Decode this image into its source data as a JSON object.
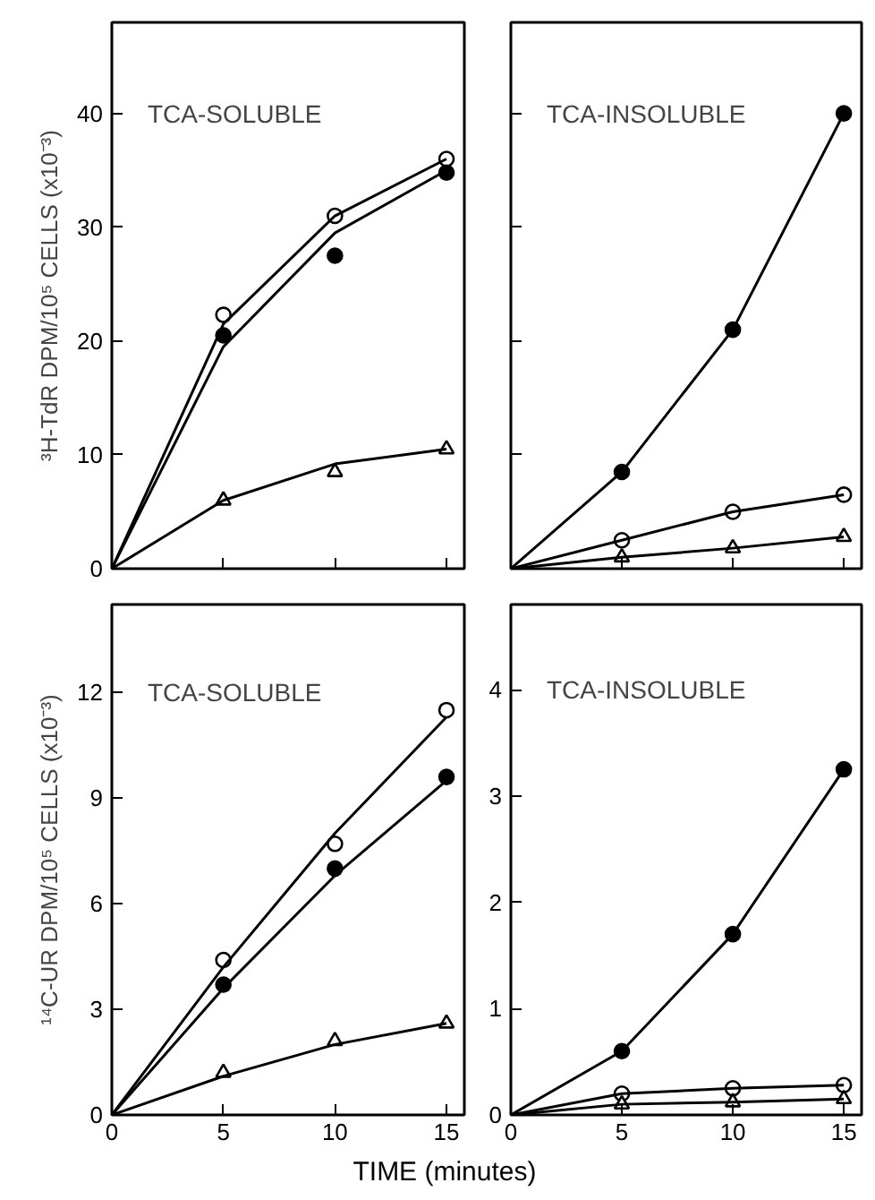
{
  "chart_data": [
    {
      "type": "scatter",
      "title": "TCA-SOLUBLE",
      "ylabel": "³H-TdR DPM/10⁵ CELLS (x10⁻³)",
      "xlim": [
        0,
        15.8
      ],
      "ylim": [
        0,
        48
      ],
      "xticks": [
        0,
        5,
        10,
        15
      ],
      "yticks": [
        0,
        10,
        20,
        30,
        40
      ],
      "tick_labels": "y",
      "series": [
        {
          "color": "#ffffff",
          "marker": "circle",
          "x": [
            5,
            10,
            15
          ],
          "values": [
            22.3,
            31,
            36
          ]
        },
        {
          "color": "#000000",
          "marker": "circle",
          "x": [
            5,
            10,
            15
          ],
          "values": [
            20.5,
            27.5,
            34.8
          ]
        },
        {
          "color": "#ffffff",
          "marker": "triangle",
          "x": [
            5,
            10,
            15
          ],
          "values": [
            6,
            8.5,
            10.5
          ]
        },
        {
          "type": "line",
          "color": "#000000",
          "x": [
            0,
            5,
            10,
            15
          ],
          "values": [
            0,
            21.5,
            31,
            36
          ]
        },
        {
          "type": "line",
          "color": "#000000",
          "x": [
            0,
            5,
            10,
            15
          ],
          "values": [
            0,
            19.5,
            29.5,
            35
          ]
        },
        {
          "type": "line",
          "color": "#000000",
          "x": [
            0,
            5,
            10,
            15
          ],
          "values": [
            0,
            6,
            9.2,
            10.5
          ]
        }
      ]
    },
    {
      "type": "scatter",
      "title": "TCA-INSOLUBLE",
      "xlim": [
        0,
        15.8
      ],
      "ylim": [
        0,
        48
      ],
      "xticks": [
        0,
        5,
        10,
        15
      ],
      "yticks": [
        0,
        10,
        20,
        30,
        40
      ],
      "tick_labels": false,
      "series": [
        {
          "color": "#000000",
          "marker": "circle",
          "x": [
            5,
            10,
            15
          ],
          "values": [
            8.5,
            21,
            40
          ]
        },
        {
          "color": "#ffffff",
          "marker": "circle",
          "x": [
            5,
            10,
            15
          ],
          "values": [
            2.5,
            5,
            6.5
          ]
        },
        {
          "color": "#ffffff",
          "marker": "triangle",
          "x": [
            5,
            10,
            15
          ],
          "values": [
            1,
            1.8,
            2.8
          ]
        },
        {
          "type": "line",
          "color": "#000000",
          "x": [
            0,
            5,
            10,
            15
          ],
          "values": [
            0,
            8.5,
            21,
            40
          ]
        },
        {
          "type": "line",
          "color": "#000000",
          "x": [
            0,
            5,
            10,
            15
          ],
          "values": [
            0,
            2.5,
            5,
            6.5
          ]
        },
        {
          "type": "line",
          "color": "#000000",
          "x": [
            0,
            5,
            10,
            15
          ],
          "values": [
            0,
            1,
            1.8,
            2.8
          ]
        }
      ]
    },
    {
      "type": "scatter",
      "title": "TCA-SOLUBLE",
      "ylabel": "¹⁴C-UR DPM/10⁵ CELLS (x10⁻³)",
      "xlabel": "TIME (minutes)",
      "xlim": [
        0,
        15.8
      ],
      "ylim": [
        0,
        14.5
      ],
      "xticks": [
        0,
        5,
        10,
        15
      ],
      "yticks": [
        0,
        3,
        6,
        9,
        12
      ],
      "series": [
        {
          "color": "#ffffff",
          "marker": "circle",
          "x": [
            5,
            10,
            15
          ],
          "values": [
            4.4,
            7.7,
            11.5
          ]
        },
        {
          "color": "#000000",
          "marker": "circle",
          "x": [
            5,
            10,
            15
          ],
          "values": [
            3.7,
            7.0,
            9.6
          ]
        },
        {
          "color": "#ffffff",
          "marker": "triangle",
          "x": [
            5,
            10,
            15
          ],
          "values": [
            1.2,
            2.1,
            2.6
          ]
        },
        {
          "type": "line",
          "color": "#000000",
          "x": [
            0,
            5,
            10,
            15
          ],
          "values": [
            0,
            4.2,
            8.0,
            11.3
          ]
        },
        {
          "type": "line",
          "color": "#000000",
          "x": [
            0,
            5,
            10,
            15
          ],
          "values": [
            0,
            3.6,
            6.8,
            9.5
          ]
        },
        {
          "type": "line",
          "color": "#000000",
          "x": [
            0,
            5,
            10,
            15
          ],
          "values": [
            0,
            1.1,
            2.0,
            2.6
          ]
        }
      ]
    },
    {
      "type": "scatter",
      "title": "TCA-INSOLUBLE",
      "xlim": [
        0,
        15.8
      ],
      "ylim": [
        0,
        4.8
      ],
      "xticks": [
        0,
        5,
        10,
        15
      ],
      "yticks": [
        0,
        1,
        2,
        3,
        4
      ],
      "series": [
        {
          "color": "#000000",
          "marker": "circle",
          "x": [
            5,
            10,
            15
          ],
          "values": [
            0.6,
            1.7,
            3.25
          ]
        },
        {
          "color": "#ffffff",
          "marker": "circle",
          "x": [
            5,
            10,
            15
          ],
          "values": [
            0.2,
            0.25,
            0.28
          ]
        },
        {
          "color": "#ffffff",
          "marker": "triangle",
          "x": [
            5,
            10,
            15
          ],
          "values": [
            0.1,
            0.12,
            0.15
          ]
        },
        {
          "type": "line",
          "color": "#000000",
          "x": [
            0,
            5,
            10,
            15
          ],
          "values": [
            0,
            0.6,
            1.7,
            3.25
          ]
        },
        {
          "type": "line",
          "color": "#000000",
          "x": [
            0,
            5,
            10,
            15
          ],
          "values": [
            0,
            0.2,
            0.25,
            0.28
          ]
        },
        {
          "type": "line",
          "color": "#000000",
          "x": [
            0,
            5,
            10,
            15
          ],
          "values": [
            0,
            0.1,
            0.12,
            0.15
          ]
        }
      ]
    }
  ]
}
